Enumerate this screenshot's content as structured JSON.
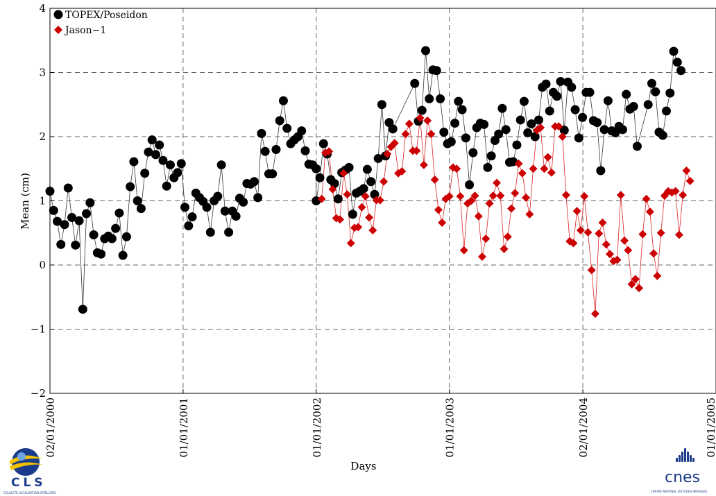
{
  "chart_data": {
    "type": "scatter",
    "title": "",
    "xlabel": "Days",
    "ylabel": "Mean (cm)",
    "ylim": [
      -2,
      4
    ],
    "xlim": [
      "2000-01-02",
      "2005-01-01"
    ],
    "grid": true,
    "legend_position": "top-left",
    "yticks": [
      -2,
      -1,
      0,
      1,
      2,
      3,
      4
    ],
    "xticks": [
      {
        "date": "2000-01-02",
        "label": "02/01/2000"
      },
      {
        "date": "2001-01-01",
        "label": "01/01/2001"
      },
      {
        "date": "2002-01-01",
        "label": "01/01/2002"
      },
      {
        "date": "2003-01-01",
        "label": "01/01/2003"
      },
      {
        "date": "2004-01-02",
        "label": "02/01/2004"
      },
      {
        "date": "2005-01-01",
        "label": "01/01/2005"
      }
    ],
    "series": [
      {
        "name": "TOPEX/Poseidon",
        "marker": "circle",
        "color": "#000000",
        "points": [
          [
            "2000-01-02",
            1.15
          ],
          [
            "2000-01-12",
            0.85
          ],
          [
            "2000-01-22",
            0.68
          ],
          [
            "2000-02-01",
            0.32
          ],
          [
            "2000-02-11",
            0.63
          ],
          [
            "2000-02-21",
            1.2
          ],
          [
            "2000-03-02",
            0.74
          ],
          [
            "2000-03-12",
            0.31
          ],
          [
            "2000-03-22",
            0.69
          ],
          [
            "2000-04-01",
            -0.69
          ],
          [
            "2000-04-11",
            0.8
          ],
          [
            "2000-04-21",
            0.97
          ],
          [
            "2000-05-01",
            0.47
          ],
          [
            "2000-05-11",
            0.19
          ],
          [
            "2000-05-21",
            0.17
          ],
          [
            "2000-05-31",
            0.41
          ],
          [
            "2000-06-10",
            0.45
          ],
          [
            "2000-06-20",
            0.41
          ],
          [
            "2000-06-30",
            0.57
          ],
          [
            "2000-07-10",
            0.81
          ],
          [
            "2000-07-20",
            0.15
          ],
          [
            "2000-07-30",
            0.44
          ],
          [
            "2000-08-09",
            1.22
          ],
          [
            "2000-08-19",
            1.61
          ],
          [
            "2000-08-29",
            1.0
          ],
          [
            "2000-09-08",
            0.88
          ],
          [
            "2000-09-18",
            1.43
          ],
          [
            "2000-09-28",
            1.76
          ],
          [
            "2000-10-08",
            1.95
          ],
          [
            "2000-10-18",
            1.72
          ],
          [
            "2000-10-28",
            1.87
          ],
          [
            "2000-11-07",
            1.63
          ],
          [
            "2000-11-17",
            1.23
          ],
          [
            "2000-11-27",
            1.56
          ],
          [
            "2000-12-07",
            1.36
          ],
          [
            "2000-12-17",
            1.44
          ],
          [
            "2000-12-27",
            1.58
          ],
          [
            "2001-01-06",
            0.9
          ],
          [
            "2001-01-16",
            0.61
          ],
          [
            "2001-01-26",
            0.75
          ],
          [
            "2001-02-05",
            1.12
          ],
          [
            "2001-02-15",
            1.05
          ],
          [
            "2001-02-25",
            0.99
          ],
          [
            "2001-03-07",
            0.9
          ],
          [
            "2001-03-17",
            0.51
          ],
          [
            "2001-03-27",
            1.0
          ],
          [
            "2001-04-06",
            1.07
          ],
          [
            "2001-04-16",
            1.56
          ],
          [
            "2001-04-26",
            0.84
          ],
          [
            "2001-05-06",
            0.51
          ],
          [
            "2001-05-16",
            0.84
          ],
          [
            "2001-05-26",
            0.76
          ],
          [
            "2001-06-05",
            1.04
          ],
          [
            "2001-06-15",
            0.98
          ],
          [
            "2001-06-25",
            1.27
          ],
          [
            "2001-07-05",
            1.26
          ],
          [
            "2001-07-15",
            1.3
          ],
          [
            "2001-07-25",
            1.05
          ],
          [
            "2001-08-04",
            2.05
          ],
          [
            "2001-08-14",
            1.77
          ],
          [
            "2001-08-24",
            1.42
          ],
          [
            "2001-09-03",
            1.42
          ],
          [
            "2001-09-13",
            1.8
          ],
          [
            "2001-09-23",
            2.25
          ],
          [
            "2001-10-03",
            2.56
          ],
          [
            "2001-10-13",
            2.13
          ],
          [
            "2001-10-23",
            1.89
          ],
          [
            "2001-11-02",
            1.95
          ],
          [
            "2001-11-12",
            2.0
          ],
          [
            "2001-11-22",
            2.09
          ],
          [
            "2001-12-02",
            1.78
          ],
          [
            "2001-12-12",
            1.57
          ],
          [
            "2001-12-22",
            1.56
          ],
          [
            "2002-01-01",
            1.5
          ],
          [
            "2002-01-01",
            1.0
          ],
          [
            "2002-01-11",
            1.36
          ],
          [
            "2002-01-21",
            1.89
          ],
          [
            "2002-01-31",
            1.73
          ],
          [
            "2002-02-10",
            1.33
          ],
          [
            "2002-02-20",
            1.27
          ],
          [
            "2002-03-02",
            1.03
          ],
          [
            "2002-03-12",
            1.44
          ],
          [
            "2002-03-22",
            1.48
          ],
          [
            "2002-04-01",
            1.52
          ],
          [
            "2002-04-11",
            0.79
          ],
          [
            "2002-04-21",
            1.12
          ],
          [
            "2002-05-01",
            1.15
          ],
          [
            "2002-05-11",
            1.19
          ],
          [
            "2002-05-21",
            1.49
          ],
          [
            "2002-05-31",
            1.3
          ],
          [
            "2002-06-10",
            1.1
          ],
          [
            "2002-06-20",
            1.66
          ],
          [
            "2002-06-30",
            2.5
          ],
          [
            "2002-07-10",
            1.7
          ],
          [
            "2002-07-20",
            2.22
          ],
          [
            "2002-07-30",
            2.12
          ],
          [
            "2002-09-28",
            2.83
          ],
          [
            "2002-10-08",
            2.24
          ],
          [
            "2002-10-18",
            2.41
          ],
          [
            "2002-10-28",
            3.34
          ],
          [
            "2002-11-07",
            2.59
          ],
          [
            "2002-11-17",
            3.04
          ],
          [
            "2002-11-27",
            3.03
          ],
          [
            "2002-12-07",
            2.59
          ],
          [
            "2002-12-17",
            2.07
          ],
          [
            "2002-12-27",
            1.89
          ],
          [
            "2003-01-06",
            1.92
          ],
          [
            "2003-01-16",
            2.21
          ],
          [
            "2003-01-26",
            2.55
          ],
          [
            "2003-02-05",
            2.42
          ],
          [
            "2003-02-15",
            1.98
          ],
          [
            "2003-02-25",
            1.25
          ],
          [
            "2003-03-07",
            1.75
          ],
          [
            "2003-03-17",
            2.14
          ],
          [
            "2003-03-27",
            2.21
          ],
          [
            "2003-04-06",
            2.19
          ],
          [
            "2003-04-16",
            1.52
          ],
          [
            "2003-04-26",
            1.7
          ],
          [
            "2003-05-06",
            1.94
          ],
          [
            "2003-05-16",
            2.04
          ],
          [
            "2003-05-26",
            2.44
          ],
          [
            "2003-06-05",
            2.11
          ],
          [
            "2003-06-15",
            1.6
          ],
          [
            "2003-06-25",
            1.61
          ],
          [
            "2003-07-05",
            1.87
          ],
          [
            "2003-07-15",
            2.26
          ],
          [
            "2003-07-25",
            2.55
          ],
          [
            "2003-08-04",
            2.06
          ],
          [
            "2003-08-14",
            2.2
          ],
          [
            "2003-08-24",
            2.0
          ],
          [
            "2003-09-03",
            2.26
          ],
          [
            "2003-09-13",
            2.77
          ],
          [
            "2003-09-23",
            2.82
          ],
          [
            "2003-10-03",
            2.4
          ],
          [
            "2003-10-13",
            2.69
          ],
          [
            "2003-10-23",
            2.63
          ],
          [
            "2003-11-02",
            2.86
          ],
          [
            "2003-11-12",
            2.1
          ],
          [
            "2003-11-22",
            2.85
          ],
          [
            "2003-12-02",
            2.77
          ],
          [
            "2003-12-12",
            2.42
          ],
          [
            "2003-12-22",
            1.98
          ],
          [
            "2004-01-01",
            2.3
          ],
          [
            "2004-01-11",
            2.69
          ],
          [
            "2004-01-21",
            2.69
          ],
          [
            "2004-01-31",
            2.25
          ],
          [
            "2004-02-10",
            2.22
          ],
          [
            "2004-02-20",
            1.47
          ],
          [
            "2004-03-01",
            2.11
          ],
          [
            "2004-03-11",
            2.56
          ],
          [
            "2004-03-21",
            2.09
          ],
          [
            "2004-03-31",
            2.06
          ],
          [
            "2004-04-10",
            2.16
          ],
          [
            "2004-04-20",
            2.11
          ],
          [
            "2004-04-30",
            2.66
          ],
          [
            "2004-05-10",
            2.43
          ],
          [
            "2004-05-20",
            2.47
          ],
          [
            "2004-05-30",
            1.85
          ],
          [
            "2004-06-29",
            2.5
          ],
          [
            "2004-07-09",
            2.83
          ],
          [
            "2004-07-19",
            2.7
          ],
          [
            "2004-07-29",
            2.07
          ],
          [
            "2004-08-08",
            2.02
          ],
          [
            "2004-08-18",
            2.4
          ],
          [
            "2004-08-28",
            2.68
          ],
          [
            "2004-09-07",
            3.33
          ],
          [
            "2004-09-17",
            3.16
          ],
          [
            "2004-09-27",
            3.03
          ]
        ]
      },
      {
        "name": "Jason−1",
        "marker": "diamond",
        "color": "#cc0000",
        "points": [
          [
            "2002-01-16",
            1.03
          ],
          [
            "2002-01-26",
            1.75
          ],
          [
            "2002-02-05",
            1.77
          ],
          [
            "2002-02-15",
            1.18
          ],
          [
            "2002-02-25",
            0.73
          ],
          [
            "2002-03-07",
            0.71
          ],
          [
            "2002-03-17",
            1.43
          ],
          [
            "2002-03-27",
            1.1
          ],
          [
            "2002-04-06",
            0.34
          ],
          [
            "2002-04-16",
            0.58
          ],
          [
            "2002-04-26",
            0.59
          ],
          [
            "2002-05-06",
            0.9
          ],
          [
            "2002-05-16",
            1.07
          ],
          [
            "2002-05-26",
            0.74
          ],
          [
            "2002-06-05",
            0.54
          ],
          [
            "2002-06-15",
            1.01
          ],
          [
            "2002-06-25",
            1.01
          ],
          [
            "2002-07-05",
            1.3
          ],
          [
            "2002-07-15",
            1.73
          ],
          [
            "2002-07-25",
            1.84
          ],
          [
            "2002-08-04",
            1.9
          ],
          [
            "2002-08-14",
            1.43
          ],
          [
            "2002-08-24",
            1.46
          ],
          [
            "2002-09-03",
            2.04
          ],
          [
            "2002-09-13",
            2.2
          ],
          [
            "2002-09-23",
            1.78
          ],
          [
            "2002-10-03",
            1.78
          ],
          [
            "2002-10-13",
            2.29
          ],
          [
            "2002-10-23",
            1.56
          ],
          [
            "2002-11-02",
            2.25
          ],
          [
            "2002-11-12",
            2.04
          ],
          [
            "2002-11-22",
            1.33
          ],
          [
            "2002-12-02",
            0.86
          ],
          [
            "2002-12-12",
            0.66
          ],
          [
            "2002-12-22",
            1.03
          ],
          [
            "2003-01-01",
            1.07
          ],
          [
            "2003-01-11",
            1.52
          ],
          [
            "2003-01-21",
            1.5
          ],
          [
            "2003-01-31",
            1.07
          ],
          [
            "2003-02-10",
            0.23
          ],
          [
            "2003-02-20",
            0.96
          ],
          [
            "2003-03-02",
            1.0
          ],
          [
            "2003-03-12",
            1.08
          ],
          [
            "2003-03-22",
            0.76
          ],
          [
            "2003-04-01",
            0.13
          ],
          [
            "2003-04-11",
            0.41
          ],
          [
            "2003-04-21",
            0.96
          ],
          [
            "2003-05-01",
            1.08
          ],
          [
            "2003-05-11",
            1.28
          ],
          [
            "2003-05-21",
            1.08
          ],
          [
            "2003-05-31",
            0.25
          ],
          [
            "2003-06-10",
            0.44
          ],
          [
            "2003-06-20",
            0.88
          ],
          [
            "2003-06-30",
            1.12
          ],
          [
            "2003-07-10",
            1.58
          ],
          [
            "2003-07-20",
            1.43
          ],
          [
            "2003-07-30",
            1.05
          ],
          [
            "2003-08-09",
            0.79
          ],
          [
            "2003-08-19",
            1.5
          ],
          [
            "2003-08-29",
            2.1
          ],
          [
            "2003-09-08",
            2.14
          ],
          [
            "2003-09-18",
            1.5
          ],
          [
            "2003-09-28",
            1.68
          ],
          [
            "2003-10-08",
            1.44
          ],
          [
            "2003-10-18",
            2.16
          ],
          [
            "2003-10-28",
            2.16
          ],
          [
            "2003-11-07",
            2.0
          ],
          [
            "2003-11-17",
            1.09
          ],
          [
            "2003-11-27",
            0.37
          ],
          [
            "2003-12-07",
            0.34
          ],
          [
            "2003-12-17",
            0.84
          ],
          [
            "2003-12-27",
            0.54
          ],
          [
            "2004-01-06",
            1.07
          ],
          [
            "2004-01-16",
            0.51
          ],
          [
            "2004-01-26",
            -0.08
          ],
          [
            "2004-02-05",
            -0.76
          ],
          [
            "2004-02-15",
            0.49
          ],
          [
            "2004-02-25",
            0.66
          ],
          [
            "2004-03-06",
            0.32
          ],
          [
            "2004-03-16",
            0.17
          ],
          [
            "2004-03-26",
            0.06
          ],
          [
            "2004-04-05",
            0.08
          ],
          [
            "2004-04-15",
            1.09
          ],
          [
            "2004-04-25",
            0.38
          ],
          [
            "2004-05-05",
            0.23
          ],
          [
            "2004-05-15",
            -0.3
          ],
          [
            "2004-05-25",
            -0.22
          ],
          [
            "2004-06-04",
            -0.36
          ],
          [
            "2004-06-14",
            0.48
          ],
          [
            "2004-06-24",
            1.03
          ],
          [
            "2004-07-04",
            0.83
          ],
          [
            "2004-07-14",
            0.18
          ],
          [
            "2004-07-24",
            -0.17
          ],
          [
            "2004-08-03",
            0.5
          ],
          [
            "2004-08-13",
            1.08
          ],
          [
            "2004-08-23",
            1.15
          ],
          [
            "2004-09-02",
            1.13
          ],
          [
            "2004-09-12",
            1.15
          ],
          [
            "2004-09-22",
            0.47
          ],
          [
            "2004-10-02",
            1.09
          ],
          [
            "2004-10-12",
            1.47
          ],
          [
            "2004-10-22",
            1.31
          ]
        ]
      }
    ]
  },
  "logos": {
    "left": {
      "name": "CLS",
      "tagline": "COLLECTE LOCALISATION SATELLITES"
    },
    "right": {
      "name": "cnes",
      "tagline": "CENTRE NATIONAL D'ETUDES SPATIALES"
    }
  }
}
